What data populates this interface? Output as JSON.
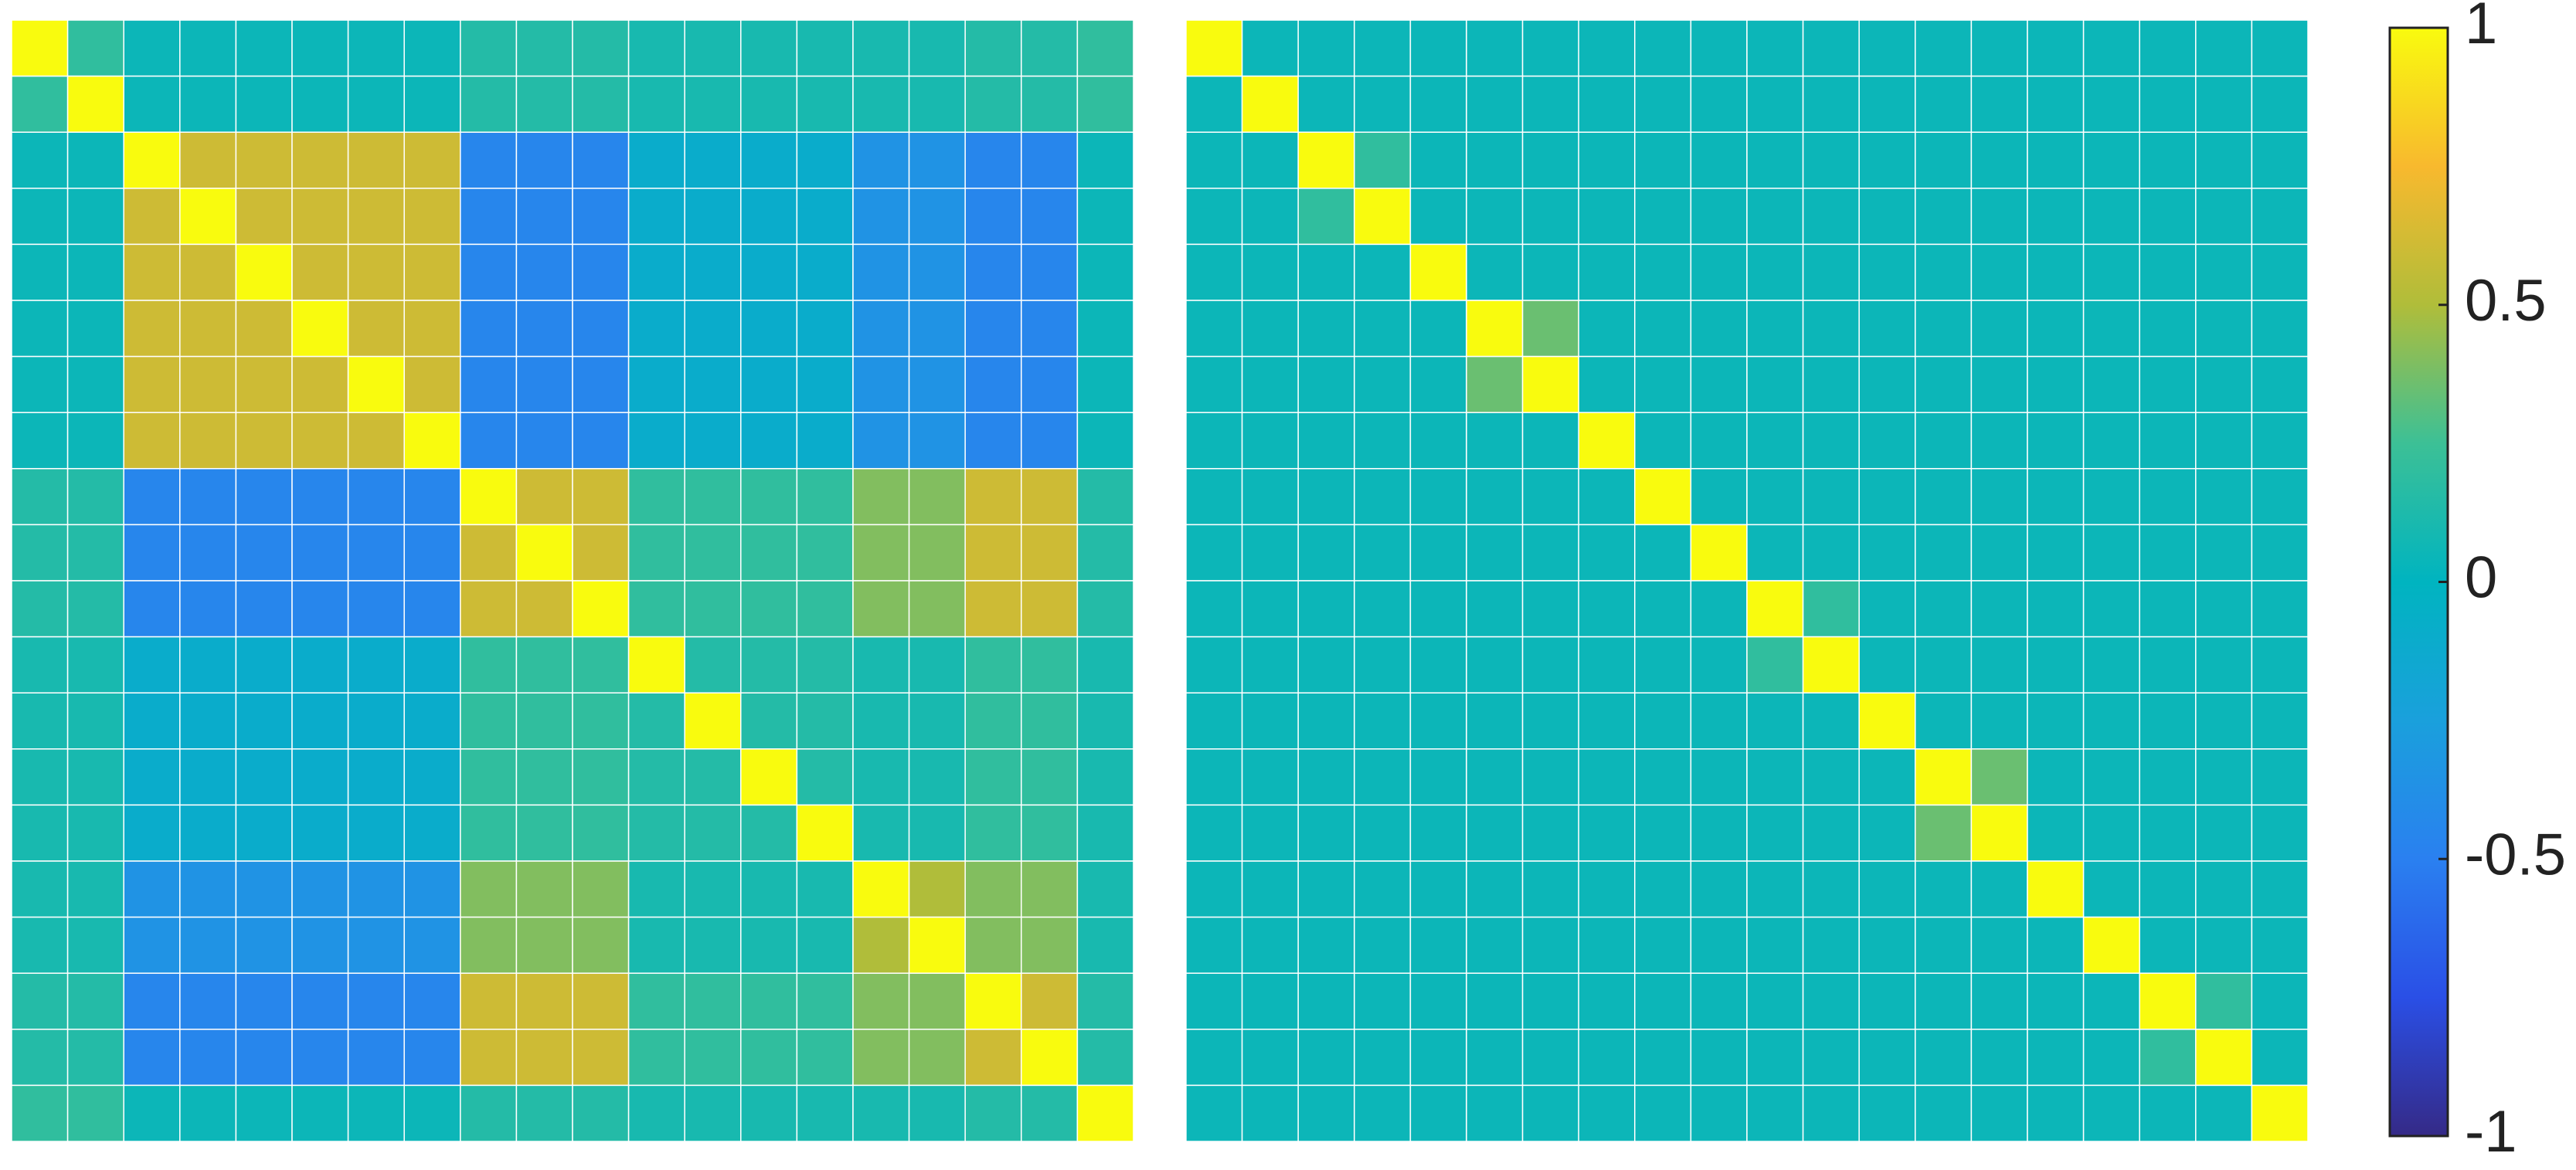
{
  "chart_data": [
    {
      "type": "heatmap",
      "matrix": [
        [
          1,
          0.2,
          0.05,
          0.05,
          0.05,
          0.05,
          0.05,
          0.05,
          0.15,
          0.15,
          0.15,
          0.1,
          0.1,
          0.1,
          0.1,
          0.1,
          0.1,
          0.15,
          0.15,
          0.2
        ],
        [
          0.2,
          1,
          0.05,
          0.05,
          0.05,
          0.05,
          0.05,
          0.05,
          0.15,
          0.15,
          0.15,
          0.1,
          0.1,
          0.1,
          0.1,
          0.1,
          0.1,
          0.15,
          0.15,
          0.2
        ],
        [
          0.05,
          0.05,
          1,
          0.6,
          0.6,
          0.6,
          0.6,
          0.6,
          -0.45,
          -0.45,
          -0.45,
          -0.1,
          -0.1,
          -0.1,
          -0.1,
          -0.35,
          -0.35,
          -0.45,
          -0.45,
          0.05
        ],
        [
          0.05,
          0.05,
          0.6,
          1,
          0.6,
          0.6,
          0.6,
          0.6,
          -0.45,
          -0.45,
          -0.45,
          -0.1,
          -0.1,
          -0.1,
          -0.1,
          -0.35,
          -0.35,
          -0.45,
          -0.45,
          0.05
        ],
        [
          0.05,
          0.05,
          0.6,
          0.6,
          1,
          0.6,
          0.6,
          0.6,
          -0.45,
          -0.45,
          -0.45,
          -0.1,
          -0.1,
          -0.1,
          -0.1,
          -0.35,
          -0.35,
          -0.45,
          -0.45,
          0.05
        ],
        [
          0.05,
          0.05,
          0.6,
          0.6,
          0.6,
          1,
          0.6,
          0.6,
          -0.45,
          -0.45,
          -0.45,
          -0.1,
          -0.1,
          -0.1,
          -0.1,
          -0.35,
          -0.35,
          -0.45,
          -0.45,
          0.05
        ],
        [
          0.05,
          0.05,
          0.6,
          0.6,
          0.6,
          0.6,
          1,
          0.6,
          -0.45,
          -0.45,
          -0.45,
          -0.1,
          -0.1,
          -0.1,
          -0.1,
          -0.35,
          -0.35,
          -0.45,
          -0.45,
          0.05
        ],
        [
          0.05,
          0.05,
          0.6,
          0.6,
          0.6,
          0.6,
          0.6,
          1,
          -0.45,
          -0.45,
          -0.45,
          -0.1,
          -0.1,
          -0.1,
          -0.1,
          -0.35,
          -0.35,
          -0.45,
          -0.45,
          0.05
        ],
        [
          0.15,
          0.15,
          -0.45,
          -0.45,
          -0.45,
          -0.45,
          -0.45,
          -0.45,
          1,
          0.6,
          0.6,
          0.2,
          0.2,
          0.2,
          0.2,
          0.4,
          0.4,
          0.6,
          0.6,
          0.15
        ],
        [
          0.15,
          0.15,
          -0.45,
          -0.45,
          -0.45,
          -0.45,
          -0.45,
          -0.45,
          0.6,
          1,
          0.6,
          0.2,
          0.2,
          0.2,
          0.2,
          0.4,
          0.4,
          0.6,
          0.6,
          0.15
        ],
        [
          0.15,
          0.15,
          -0.45,
          -0.45,
          -0.45,
          -0.45,
          -0.45,
          -0.45,
          0.6,
          0.6,
          1,
          0.2,
          0.2,
          0.2,
          0.2,
          0.4,
          0.4,
          0.6,
          0.6,
          0.15
        ],
        [
          0.1,
          0.1,
          -0.1,
          -0.1,
          -0.1,
          -0.1,
          -0.1,
          -0.1,
          0.2,
          0.2,
          0.2,
          1,
          0.15,
          0.15,
          0.15,
          0.1,
          0.1,
          0.2,
          0.2,
          0.1
        ],
        [
          0.1,
          0.1,
          -0.1,
          -0.1,
          -0.1,
          -0.1,
          -0.1,
          -0.1,
          0.2,
          0.2,
          0.2,
          0.15,
          1,
          0.15,
          0.15,
          0.1,
          0.1,
          0.2,
          0.2,
          0.1
        ],
        [
          0.1,
          0.1,
          -0.1,
          -0.1,
          -0.1,
          -0.1,
          -0.1,
          -0.1,
          0.2,
          0.2,
          0.2,
          0.15,
          0.15,
          1,
          0.15,
          0.1,
          0.1,
          0.2,
          0.2,
          0.1
        ],
        [
          0.1,
          0.1,
          -0.1,
          -0.1,
          -0.1,
          -0.1,
          -0.1,
          -0.1,
          0.2,
          0.2,
          0.2,
          0.15,
          0.15,
          0.15,
          1,
          0.1,
          0.1,
          0.2,
          0.2,
          0.1
        ],
        [
          0.1,
          0.1,
          -0.35,
          -0.35,
          -0.35,
          -0.35,
          -0.35,
          -0.35,
          0.4,
          0.4,
          0.4,
          0.1,
          0.1,
          0.1,
          0.1,
          1,
          0.5,
          0.4,
          0.4,
          0.1
        ],
        [
          0.1,
          0.1,
          -0.35,
          -0.35,
          -0.35,
          -0.35,
          -0.35,
          -0.35,
          0.4,
          0.4,
          0.4,
          0.1,
          0.1,
          0.1,
          0.1,
          0.5,
          1,
          0.4,
          0.4,
          0.1
        ],
        [
          0.15,
          0.15,
          -0.45,
          -0.45,
          -0.45,
          -0.45,
          -0.45,
          -0.45,
          0.6,
          0.6,
          0.6,
          0.2,
          0.2,
          0.2,
          0.2,
          0.4,
          0.4,
          1,
          0.6,
          0.15
        ],
        [
          0.15,
          0.15,
          -0.45,
          -0.45,
          -0.45,
          -0.45,
          -0.45,
          -0.45,
          0.6,
          0.6,
          0.6,
          0.2,
          0.2,
          0.2,
          0.2,
          0.4,
          0.4,
          0.6,
          1,
          0.15
        ],
        [
          0.2,
          0.2,
          0.05,
          0.05,
          0.05,
          0.05,
          0.05,
          0.05,
          0.15,
          0.15,
          0.15,
          0.1,
          0.1,
          0.1,
          0.1,
          0.1,
          0.1,
          0.15,
          0.15,
          1
        ]
      ]
    },
    {
      "type": "heatmap",
      "matrix": [
        [
          1,
          0.05,
          0.05,
          0.05,
          0.05,
          0.05,
          0.05,
          0.05,
          0.05,
          0.05,
          0.05,
          0.05,
          0.05,
          0.05,
          0.05,
          0.05,
          0.05,
          0.05,
          0.05,
          0.05
        ],
        [
          0.05,
          1,
          0.05,
          0.05,
          0.05,
          0.05,
          0.05,
          0.05,
          0.05,
          0.05,
          0.05,
          0.05,
          0.05,
          0.05,
          0.05,
          0.05,
          0.05,
          0.05,
          0.05,
          0.05
        ],
        [
          0.05,
          0.05,
          1,
          0.2,
          0.05,
          0.05,
          0.05,
          0.05,
          0.05,
          0.05,
          0.05,
          0.05,
          0.05,
          0.05,
          0.05,
          0.05,
          0.05,
          0.05,
          0.05,
          0.05
        ],
        [
          0.05,
          0.05,
          0.2,
          1,
          0.05,
          0.05,
          0.05,
          0.05,
          0.05,
          0.05,
          0.05,
          0.05,
          0.05,
          0.05,
          0.05,
          0.05,
          0.05,
          0.05,
          0.05,
          0.05
        ],
        [
          0.05,
          0.05,
          0.05,
          0.05,
          1,
          0.05,
          0.05,
          0.05,
          0.05,
          0.05,
          0.05,
          0.05,
          0.05,
          0.05,
          0.05,
          0.05,
          0.05,
          0.05,
          0.05,
          0.05
        ],
        [
          0.05,
          0.05,
          0.05,
          0.05,
          0.05,
          1,
          0.35,
          0.05,
          0.05,
          0.05,
          0.05,
          0.05,
          0.05,
          0.05,
          0.05,
          0.05,
          0.05,
          0.05,
          0.05,
          0.05
        ],
        [
          0.05,
          0.05,
          0.05,
          0.05,
          0.05,
          0.35,
          1,
          0.05,
          0.05,
          0.05,
          0.05,
          0.05,
          0.05,
          0.05,
          0.05,
          0.05,
          0.05,
          0.05,
          0.05,
          0.05
        ],
        [
          0.05,
          0.05,
          0.05,
          0.05,
          0.05,
          0.05,
          0.05,
          1,
          0.05,
          0.05,
          0.05,
          0.05,
          0.05,
          0.05,
          0.05,
          0.05,
          0.05,
          0.05,
          0.05,
          0.05
        ],
        [
          0.05,
          0.05,
          0.05,
          0.05,
          0.05,
          0.05,
          0.05,
          0.05,
          1,
          0.05,
          0.05,
          0.05,
          0.05,
          0.05,
          0.05,
          0.05,
          0.05,
          0.05,
          0.05,
          0.05
        ],
        [
          0.05,
          0.05,
          0.05,
          0.05,
          0.05,
          0.05,
          0.05,
          0.05,
          0.05,
          1,
          0.05,
          0.05,
          0.05,
          0.05,
          0.05,
          0.05,
          0.05,
          0.05,
          0.05,
          0.05
        ],
        [
          0.05,
          0.05,
          0.05,
          0.05,
          0.05,
          0.05,
          0.05,
          0.05,
          0.05,
          0.05,
          1,
          0.2,
          0.05,
          0.05,
          0.05,
          0.05,
          0.05,
          0.05,
          0.05,
          0.05
        ],
        [
          0.05,
          0.05,
          0.05,
          0.05,
          0.05,
          0.05,
          0.05,
          0.05,
          0.05,
          0.05,
          0.2,
          1,
          0.05,
          0.05,
          0.05,
          0.05,
          0.05,
          0.05,
          0.05,
          0.05
        ],
        [
          0.05,
          0.05,
          0.05,
          0.05,
          0.05,
          0.05,
          0.05,
          0.05,
          0.05,
          0.05,
          0.05,
          0.05,
          1,
          0.05,
          0.05,
          0.05,
          0.05,
          0.05,
          0.05,
          0.05
        ],
        [
          0.05,
          0.05,
          0.05,
          0.05,
          0.05,
          0.05,
          0.05,
          0.05,
          0.05,
          0.05,
          0.05,
          0.05,
          0.05,
          1,
          0.35,
          0.05,
          0.05,
          0.05,
          0.05,
          0.05
        ],
        [
          0.05,
          0.05,
          0.05,
          0.05,
          0.05,
          0.05,
          0.05,
          0.05,
          0.05,
          0.05,
          0.05,
          0.05,
          0.05,
          0.35,
          1,
          0.05,
          0.05,
          0.05,
          0.05,
          0.05
        ],
        [
          0.05,
          0.05,
          0.05,
          0.05,
          0.05,
          0.05,
          0.05,
          0.05,
          0.05,
          0.05,
          0.05,
          0.05,
          0.05,
          0.05,
          0.05,
          1,
          0.05,
          0.05,
          0.05,
          0.05
        ],
        [
          0.05,
          0.05,
          0.05,
          0.05,
          0.05,
          0.05,
          0.05,
          0.05,
          0.05,
          0.05,
          0.05,
          0.05,
          0.05,
          0.05,
          0.05,
          0.05,
          1,
          0.05,
          0.05,
          0.05
        ],
        [
          0.05,
          0.05,
          0.05,
          0.05,
          0.05,
          0.05,
          0.05,
          0.05,
          0.05,
          0.05,
          0.05,
          0.05,
          0.05,
          0.05,
          0.05,
          0.05,
          0.05,
          1,
          0.2,
          0.05
        ],
        [
          0.05,
          0.05,
          0.05,
          0.05,
          0.05,
          0.05,
          0.05,
          0.05,
          0.05,
          0.05,
          0.05,
          0.05,
          0.05,
          0.05,
          0.05,
          0.05,
          0.05,
          0.2,
          1,
          0.05
        ],
        [
          0.05,
          0.05,
          0.05,
          0.05,
          0.05,
          0.05,
          0.05,
          0.05,
          0.05,
          0.05,
          0.05,
          0.05,
          0.05,
          0.05,
          0.05,
          0.05,
          0.05,
          0.05,
          0.05,
          1
        ]
      ]
    }
  ],
  "colorbar": {
    "clim": [
      -1,
      1
    ],
    "ticks": [
      1,
      0.5,
      0,
      -0.5,
      -1
    ],
    "colormap": [
      "#352a87",
      "#2a4fe6",
      "#2a80f0",
      "#1aa0dc",
      "#00b4c0",
      "#3cc096",
      "#b0bd3a",
      "#f8b92e",
      "#f9fb0e"
    ]
  }
}
